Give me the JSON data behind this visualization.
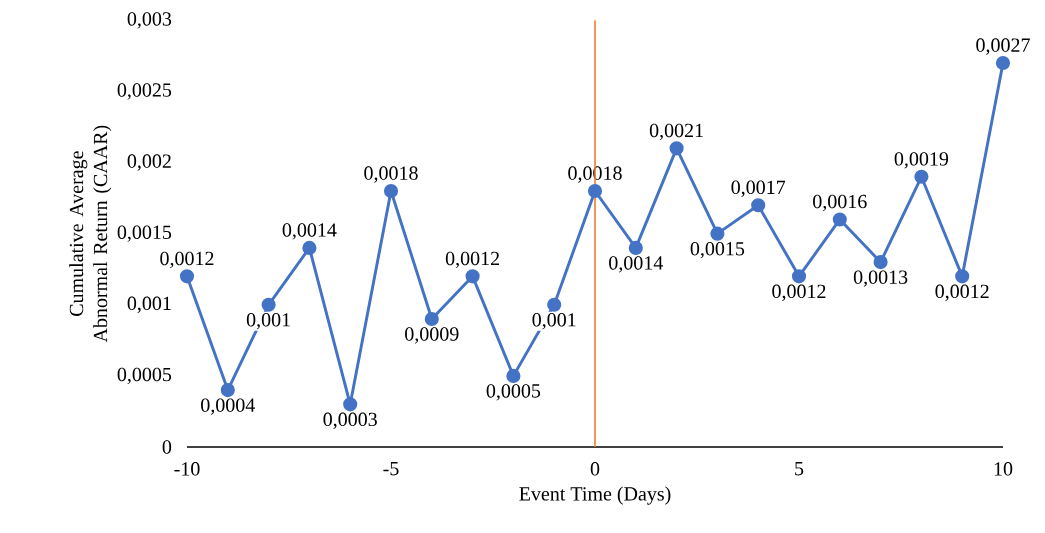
{
  "chart_data": {
    "type": "line",
    "xlabel": "Event Time (Days)",
    "ylabel": "Cumulative Average Abnormal Return (CAAR)",
    "x": [
      -10,
      -9,
      -8,
      -7,
      -6,
      -5,
      -4,
      -3,
      -2,
      -1,
      0,
      1,
      2,
      3,
      4,
      5,
      6,
      7,
      8,
      9,
      10
    ],
    "series": [
      {
        "color": "#4472c4",
        "values": [
          0.0012,
          0.0004,
          0.001,
          0.0014,
          0.0003,
          0.0018,
          0.0009,
          0.0012,
          0.0005,
          0.001,
          0.0018,
          0.0014,
          0.0021,
          0.0015,
          0.0017,
          0.0012,
          0.0016,
          0.0013,
          0.0019,
          0.0012,
          0.0027
        ],
        "value_labels": [
          "0,0012",
          "0,0004",
          "0,001",
          "0,0014",
          "0,0003",
          "0,0018",
          "0,0009",
          "0,0012",
          "0,0005",
          "0,001",
          "0,0018",
          "0,0014",
          "0,0021",
          "0,0015",
          "0,0017",
          "0,0012",
          "0,0016",
          "0,0013",
          "0,0019",
          "0,0012",
          "0,0027"
        ]
      }
    ],
    "xlim": [
      -10,
      10
    ],
    "ylim": [
      0,
      0.003
    ],
    "xticks": [
      -10,
      -5,
      0,
      5,
      10
    ],
    "yticks": [
      0,
      {
        "value": 0.0005,
        "label": "0,0005"
      },
      {
        "value": 0.001,
        "label": "0,001"
      },
      {
        "value": 0.0015,
        "label": "0,0015"
      },
      {
        "value": 0.002,
        "label": "0,002"
      },
      {
        "value": 0.0025,
        "label": "0,0025"
      },
      {
        "value": 0.003,
        "label": "0,003"
      }
    ],
    "ref_lines": [
      {
        "axis": "x",
        "value": 0,
        "color": "#ed7d31"
      }
    ],
    "marker": "circle",
    "line_style": "solid"
  }
}
